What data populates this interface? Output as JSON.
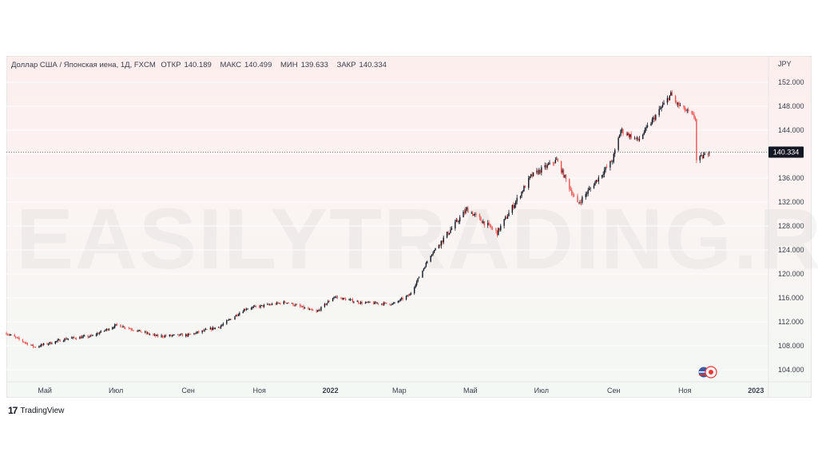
{
  "header": {
    "symbol": "Доллар США / Японская иена, 1Д, FXCM",
    "open_label": "ОТКР",
    "open_value": "140.189",
    "high_label": "МАКС",
    "high_value": "140.499",
    "low_label": "МИН",
    "low_value": "139.633",
    "close_label": "ЗАКР",
    "close_value": "140.334"
  },
  "watermark": "EASILYTRADING.RU",
  "branding": {
    "logo": "17",
    "name": "TradingView"
  },
  "flag_icon": "us-japan-flags-icon",
  "colors": {
    "up": "#131722",
    "down": "#ef5350",
    "grid": "#ffffff",
    "last_price_line": "#555555"
  },
  "chart_data": {
    "type": "candlestick",
    "currency_label": "JPY",
    "last_price": 140.334,
    "ylim": [
      102,
      154
    ],
    "y_ticks": [
      "104.000",
      "108.000",
      "112.000",
      "116.000",
      "120.000",
      "124.000",
      "128.000",
      "132.000",
      "136.000",
      "140.000",
      "144.000",
      "148.000",
      "152.000"
    ],
    "x_ticks": [
      "Май",
      "Июл",
      "Сен",
      "Ноя",
      "2022",
      "Мар",
      "Май",
      "Июл",
      "Сен",
      "Ноя",
      "2023"
    ],
    "x_tick_bold": [
      false,
      false,
      false,
      false,
      true,
      false,
      false,
      false,
      false,
      false,
      true
    ],
    "anchors": [
      {
        "date": "2021-03-29",
        "close": 110.1
      },
      {
        "date": "2021-04-22",
        "close": 107.8
      },
      {
        "date": "2021-05-20",
        "close": 109.2
      },
      {
        "date": "2021-06-10",
        "close": 109.6
      },
      {
        "date": "2021-07-02",
        "close": 111.5
      },
      {
        "date": "2021-08-05",
        "close": 109.6
      },
      {
        "date": "2021-09-01",
        "close": 109.8
      },
      {
        "date": "2021-09-28",
        "close": 111.2
      },
      {
        "date": "2021-10-20",
        "close": 114.2
      },
      {
        "date": "2021-11-24",
        "close": 115.3
      },
      {
        "date": "2021-12-20",
        "close": 113.6
      },
      {
        "date": "2022-01-04",
        "close": 116.2
      },
      {
        "date": "2022-01-27",
        "close": 115.2
      },
      {
        "date": "2022-02-24",
        "close": 115.0
      },
      {
        "date": "2022-03-10",
        "close": 116.5
      },
      {
        "date": "2022-03-28",
        "close": 123.2
      },
      {
        "date": "2022-04-28",
        "close": 130.8
      },
      {
        "date": "2022-05-24",
        "close": 126.9
      },
      {
        "date": "2022-06-22",
        "close": 136.3
      },
      {
        "date": "2022-07-14",
        "close": 139.0
      },
      {
        "date": "2022-08-01",
        "close": 131.6
      },
      {
        "date": "2022-08-31",
        "close": 139.0
      },
      {
        "date": "2022-09-07",
        "close": 144.0
      },
      {
        "date": "2022-09-22",
        "close": 142.3
      },
      {
        "date": "2022-10-20",
        "close": 150.0
      },
      {
        "date": "2022-10-24",
        "close": 148.6
      },
      {
        "date": "2022-11-10",
        "close": 146.0
      },
      {
        "date": "2022-11-11",
        "close": 138.9
      },
      {
        "date": "2022-11-22",
        "close": 140.334
      }
    ]
  }
}
